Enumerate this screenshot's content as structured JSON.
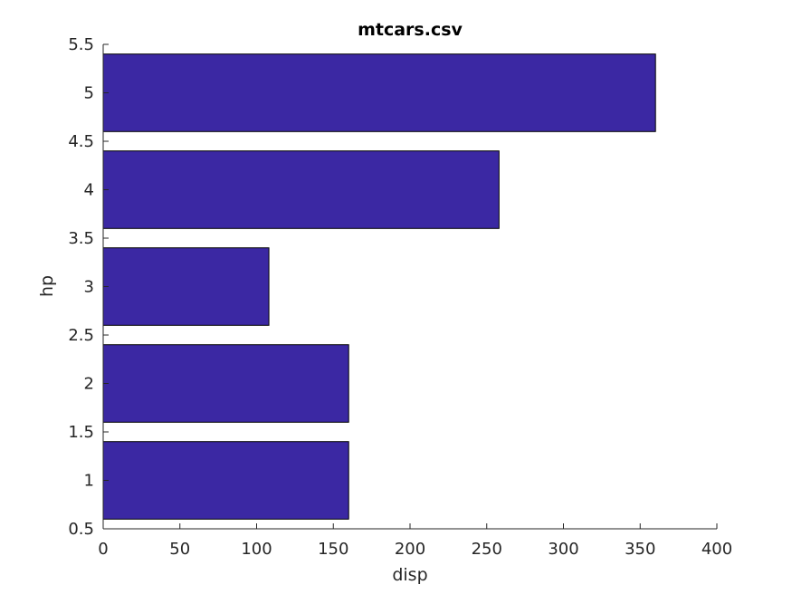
{
  "chart_data": {
    "type": "bar",
    "orientation": "horizontal",
    "title": "mtcars.csv",
    "xlabel": "disp",
    "ylabel": "hp",
    "categories": [
      1,
      2,
      3,
      4,
      5
    ],
    "values": [
      160,
      160,
      108,
      258,
      360
    ],
    "xlim": [
      0,
      400
    ],
    "ylim": [
      0.5,
      5.5
    ],
    "xticks": [
      "0",
      "50",
      "100",
      "150",
      "200",
      "250",
      "300",
      "350",
      "400"
    ],
    "yticks": [
      "0.5",
      "1",
      "1.5",
      "2",
      "2.5",
      "3",
      "3.5",
      "4",
      "4.5",
      "5",
      "5.5"
    ],
    "bar_color": "#3b28a3",
    "grid": false,
    "legend": "none"
  }
}
